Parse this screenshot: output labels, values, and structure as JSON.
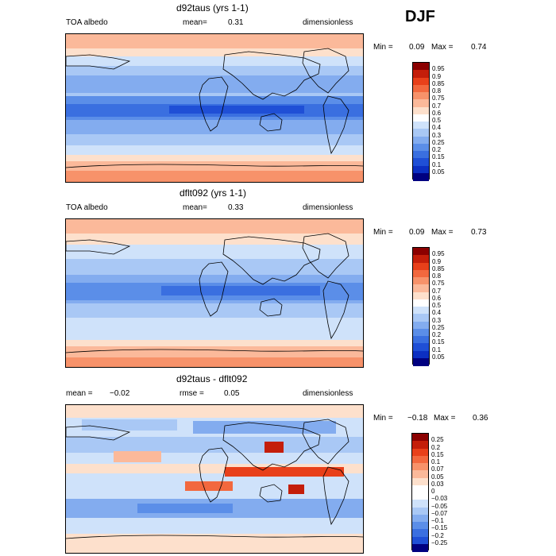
{
  "season": "DJF",
  "panels": [
    {
      "title": "d92taus (yrs 1-1)",
      "left_label": "TOA albedo",
      "mean_label": "mean=",
      "mean_value": "0.31",
      "units": "dimensionless",
      "min_label": "Min =",
      "min_value": "0.09",
      "max_label": "Max =",
      "max_value": "0.74"
    },
    {
      "title": "dflt092 (yrs 1-1)",
      "left_label": "TOA albedo",
      "mean_label": "mean=",
      "mean_value": "0.33",
      "units": "dimensionless",
      "min_label": "Min =",
      "min_value": "0.09",
      "max_label": "Max =",
      "max_value": "0.73"
    },
    {
      "title": "d92taus - dflt092",
      "mean_text": "mean =",
      "mean_value": "−0.02",
      "rmse_label": "rmse =",
      "rmse_value": "0.05",
      "units": "dimensionless",
      "min_label": "Min =",
      "min_value": "−0.18",
      "max_label": "Max =",
      "max_value": "0.36"
    }
  ],
  "colorbars": {
    "absolute": {
      "labels": [
        "0.95",
        "0.9",
        "0.85",
        "0.8",
        "0.75",
        "0.7",
        "0.6",
        "0.5",
        "0.4",
        "0.3",
        "0.25",
        "0.2",
        "0.15",
        "0.1",
        "0.05"
      ],
      "colors": [
        "#8b0000",
        "#c41e0a",
        "#e8401a",
        "#f2683e",
        "#f7926a",
        "#fbb99a",
        "#fde0cc",
        "#ffffff",
        "#cfe2fa",
        "#a9c8f5",
        "#83acef",
        "#5b8ee8",
        "#3a6fe0",
        "#1f4fd6",
        "#0c2fc2",
        "#000080"
      ]
    },
    "difference": {
      "labels": [
        "0.25",
        "0.2",
        "0.15",
        "0.1",
        "0.07",
        "0.05",
        "0.03",
        "0",
        "−0.03",
        "−0.05",
        "−0.07",
        "−0.1",
        "−0.15",
        "−0.2",
        "−0.25"
      ],
      "colors": [
        "#8b0000",
        "#c41e0a",
        "#e8401a",
        "#f2683e",
        "#f7926a",
        "#fbb99a",
        "#fde0cc",
        "#ffffff",
        "#ffffff",
        "#cfe2fa",
        "#a9c8f5",
        "#83acef",
        "#5b8ee8",
        "#3a6fe0",
        "#1f4fd6",
        "#000080"
      ]
    }
  },
  "chart_data": [
    {
      "type": "heatmap",
      "title": "d92taus (yrs 1-1)",
      "variable": "TOA albedo",
      "season": "DJF",
      "mean": 0.31,
      "min": 0.09,
      "max": 0.74,
      "units": "dimensionless",
      "levels": [
        0.05,
        0.1,
        0.15,
        0.2,
        0.25,
        0.3,
        0.4,
        0.5,
        0.6,
        0.7,
        0.75,
        0.8,
        0.85,
        0.9,
        0.95
      ]
    },
    {
      "type": "heatmap",
      "title": "dflt092 (yrs 1-1)",
      "variable": "TOA albedo",
      "season": "DJF",
      "mean": 0.33,
      "min": 0.09,
      "max": 0.73,
      "units": "dimensionless",
      "levels": [
        0.05,
        0.1,
        0.15,
        0.2,
        0.25,
        0.3,
        0.4,
        0.5,
        0.6,
        0.7,
        0.75,
        0.8,
        0.85,
        0.9,
        0.95
      ]
    },
    {
      "type": "heatmap",
      "title": "d92taus - dflt092",
      "season": "DJF",
      "mean": -0.02,
      "rmse": 0.05,
      "min": -0.18,
      "max": 0.36,
      "units": "dimensionless",
      "levels": [
        -0.25,
        -0.2,
        -0.15,
        -0.1,
        -0.07,
        -0.05,
        -0.03,
        0,
        0.03,
        0.05,
        0.07,
        0.1,
        0.15,
        0.2,
        0.25
      ]
    }
  ]
}
